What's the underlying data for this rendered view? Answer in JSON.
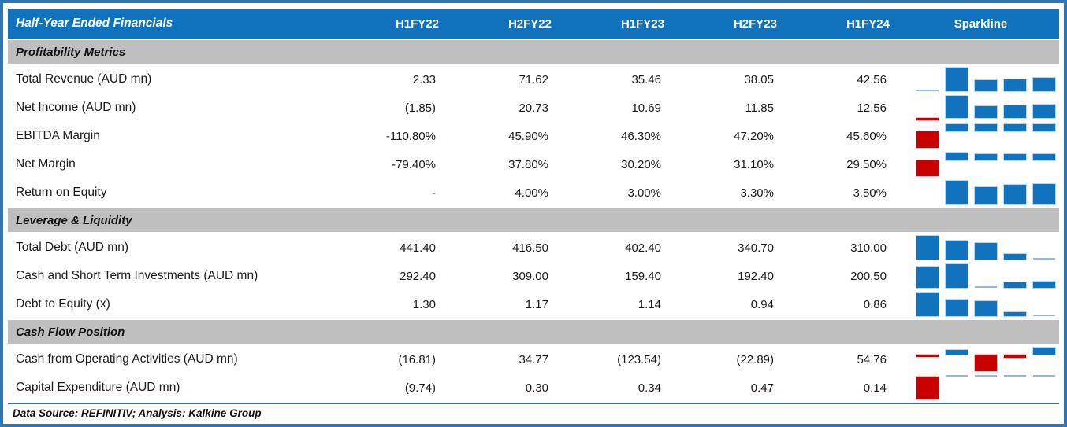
{
  "header": {
    "title": "Half-Year Ended Financials",
    "columns": [
      "H1FY22",
      "H2FY22",
      "H1FY23",
      "H2FY23",
      "H1FY24"
    ],
    "sparkline_label": "Sparkline"
  },
  "sections": [
    {
      "title": "Profitability Metrics",
      "rows": [
        {
          "label": "Total Revenue (AUD mn)",
          "values": [
            "2.33",
            "71.62",
            "35.46",
            "38.05",
            "42.56"
          ],
          "spark": [
            2.33,
            71.62,
            35.46,
            38.05,
            42.56
          ]
        },
        {
          "label": "Net Income (AUD mn)",
          "values": [
            "(1.85)",
            "20.73",
            "10.69",
            "11.85",
            "12.56"
          ],
          "spark": [
            -1.85,
            20.73,
            10.69,
            11.85,
            12.56
          ]
        },
        {
          "label": "EBITDA Margin",
          "values": [
            "-110.80%",
            "45.90%",
            "46.30%",
            "47.20%",
            "45.60%"
          ],
          "spark": [
            -110.8,
            45.9,
            46.3,
            47.2,
            45.6
          ]
        },
        {
          "label": "Net Margin",
          "values": [
            "-79.40%",
            "37.80%",
            "30.20%",
            "31.10%",
            "29.50%"
          ],
          "spark": [
            -79.4,
            37.8,
            30.2,
            31.1,
            29.5
          ]
        },
        {
          "label": "Return on Equity",
          "values": [
            "-",
            "4.00%",
            "3.00%",
            "3.30%",
            "3.50%"
          ],
          "spark": [
            null,
            4.0,
            3.0,
            3.3,
            3.5
          ],
          "spark_min": 0
        }
      ]
    },
    {
      "title": "Leverage & Liquidity",
      "rows": [
        {
          "label": "Total Debt (AUD mn)",
          "values": [
            "441.40",
            "416.50",
            "402.40",
            "340.70",
            "310.00"
          ],
          "spark": [
            441.4,
            416.5,
            402.4,
            340.7,
            310.0
          ]
        },
        {
          "label": "Cash and Short Term Investments (AUD mn)",
          "values": [
            "292.40",
            "309.00",
            "159.40",
            "192.40",
            "200.50"
          ],
          "spark": [
            292.4,
            309.0,
            159.4,
            192.4,
            200.5
          ]
        },
        {
          "label": "Debt to Equity (x)",
          "values": [
            "1.30",
            "1.17",
            "1.14",
            "0.94",
            "0.86"
          ],
          "spark": [
            1.3,
            1.17,
            1.14,
            0.94,
            0.86
          ]
        }
      ]
    },
    {
      "title": "Cash Flow Position",
      "rows": [
        {
          "label": "Cash from Operating Activities (AUD mn)",
          "values": [
            "(16.81)",
            "34.77",
            "(123.54)",
            "(22.89)",
            "54.76"
          ],
          "spark": [
            -16.81,
            34.77,
            -123.54,
            -22.89,
            54.76
          ]
        },
        {
          "label": "Capital Expenditure (AUD mn)",
          "values": [
            "(9.74)",
            "0.30",
            "0.34",
            "0.47",
            "0.14"
          ],
          "spark": [
            -9.74,
            0.3,
            0.34,
            0.47,
            0.14
          ]
        }
      ]
    }
  ],
  "footer": {
    "text": "Data Source: REFINITIV; Analysis: Kalkine Group"
  },
  "colors": {
    "header_bg": "#1072BC",
    "frame_border": "#2E75B6",
    "section_bg": "#BFBFBF",
    "bar_positive": "#1172BD",
    "bar_negative": "#C90000",
    "bar_sliver": "#8FBADD"
  },
  "chart_data": {
    "type": "table",
    "title": "Half-Year Ended Financials",
    "columns": [
      "H1FY22",
      "H2FY22",
      "H1FY23",
      "H2FY23",
      "H1FY24"
    ],
    "sparkline_type": "bar",
    "sections": [
      {
        "title": "Profitability Metrics",
        "series": [
          {
            "name": "Total Revenue (AUD mn)",
            "values": [
              2.33,
              71.62,
              35.46,
              38.05,
              42.56
            ]
          },
          {
            "name": "Net Income (AUD mn)",
            "values": [
              -1.85,
              20.73,
              10.69,
              11.85,
              12.56
            ]
          },
          {
            "name": "EBITDA Margin (%)",
            "values": [
              -110.8,
              45.9,
              46.3,
              47.2,
              45.6
            ]
          },
          {
            "name": "Net Margin (%)",
            "values": [
              -79.4,
              37.8,
              30.2,
              31.1,
              29.5
            ]
          },
          {
            "name": "Return on Equity (%)",
            "values": [
              null,
              4.0,
              3.0,
              3.3,
              3.5
            ]
          }
        ]
      },
      {
        "title": "Leverage & Liquidity",
        "series": [
          {
            "name": "Total Debt (AUD mn)",
            "values": [
              441.4,
              416.5,
              402.4,
              340.7,
              310.0
            ]
          },
          {
            "name": "Cash and Short Term Investments (AUD mn)",
            "values": [
              292.4,
              309.0,
              159.4,
              192.4,
              200.5
            ]
          },
          {
            "name": "Debt to Equity (x)",
            "values": [
              1.3,
              1.17,
              1.14,
              0.94,
              0.86
            ]
          }
        ]
      },
      {
        "title": "Cash Flow Position",
        "series": [
          {
            "name": "Cash from Operating Activities (AUD mn)",
            "values": [
              -16.81,
              34.77,
              -123.54,
              -22.89,
              54.76
            ]
          },
          {
            "name": "Capital Expenditure (AUD mn)",
            "values": [
              -9.74,
              0.3,
              0.34,
              0.47,
              0.14
            ]
          }
        ]
      }
    ],
    "source": "Data Source: REFINITIV; Analysis: Kalkine Group"
  }
}
